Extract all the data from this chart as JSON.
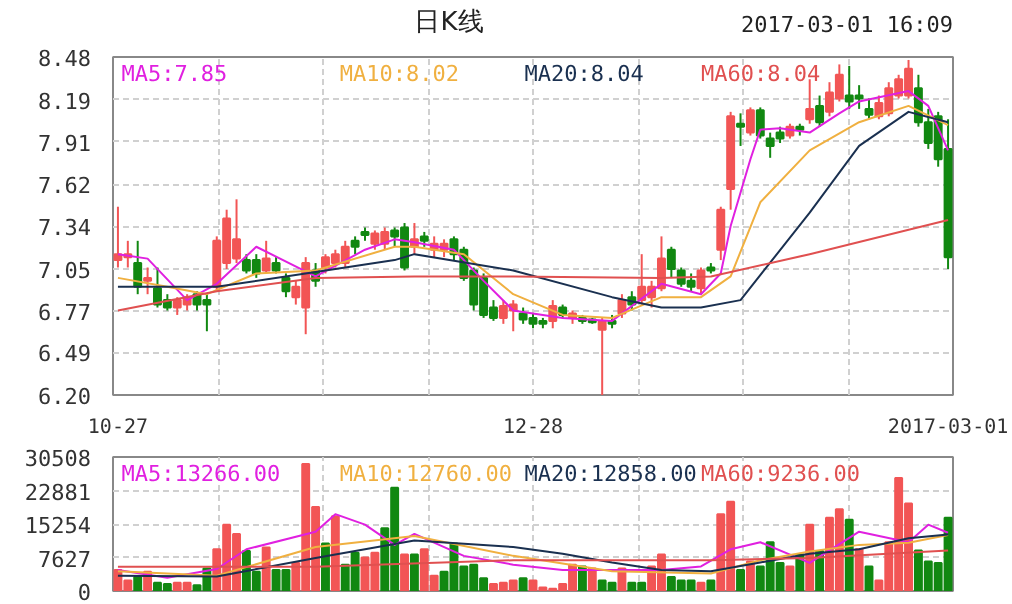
{
  "chart_data": [
    {
      "type": "candlestick",
      "title": "日K线",
      "annotations": [
        "2017-03-01 16:09"
      ],
      "categories": [
        "10-27",
        null,
        null,
        null,
        null,
        null,
        null,
        null,
        null,
        null,
        null,
        null,
        null,
        null,
        null,
        null,
        null,
        null,
        null,
        null,
        null,
        null,
        null,
        null,
        null,
        null,
        null,
        null,
        null,
        null,
        null,
        null,
        null,
        null,
        null,
        null,
        null,
        null,
        null,
        null,
        null,
        null,
        "12-28",
        null,
        null,
        null,
        null,
        null,
        null,
        null,
        null,
        null,
        null,
        null,
        null,
        null,
        null,
        null,
        null,
        null,
        null,
        null,
        null,
        null,
        null,
        null,
        null,
        null,
        null,
        null,
        null,
        null,
        null,
        null,
        null,
        null,
        null,
        null,
        null,
        null,
        null,
        null,
        null,
        null,
        "2017-03-01"
      ],
      "ohlc": [
        [
          7.11,
          7.47,
          7.06,
          7.15
        ],
        [
          7.13,
          7.24,
          7.06,
          7.15
        ],
        [
          7.09,
          7.24,
          6.88,
          6.93
        ],
        [
          6.97,
          7.06,
          6.88,
          6.99
        ],
        [
          6.92,
          7.06,
          6.79,
          6.81
        ],
        [
          6.84,
          6.88,
          6.77,
          6.79
        ],
        [
          6.79,
          6.86,
          6.74,
          6.84
        ],
        [
          6.81,
          6.88,
          6.77,
          6.86
        ],
        [
          6.88,
          6.9,
          6.77,
          6.81
        ],
        [
          6.84,
          6.88,
          6.63,
          6.81
        ],
        [
          6.93,
          7.27,
          6.9,
          7.24
        ],
        [
          7.09,
          7.45,
          7.05,
          7.39
        ],
        [
          7.12,
          7.52,
          7.09,
          7.25
        ],
        [
          7.11,
          7.15,
          7.02,
          7.04
        ],
        [
          7.11,
          7.15,
          6.99,
          7.02
        ],
        [
          7.04,
          7.24,
          7.02,
          7.12
        ],
        [
          7.09,
          7.13,
          7.02,
          7.04
        ],
        [
          6.99,
          7.02,
          6.86,
          6.9
        ],
        [
          6.86,
          6.97,
          6.81,
          6.93
        ],
        [
          6.79,
          7.13,
          6.61,
          7.09
        ],
        [
          7.04,
          7.09,
          6.93,
          6.97
        ],
        [
          7.06,
          7.15,
          7.02,
          7.13
        ],
        [
          7.09,
          7.18,
          7.06,
          7.15
        ],
        [
          7.09,
          7.24,
          7.06,
          7.2
        ],
        [
          7.24,
          7.27,
          7.15,
          7.2
        ],
        [
          7.3,
          7.33,
          7.24,
          7.28
        ],
        [
          7.22,
          7.31,
          7.18,
          7.29
        ],
        [
          7.22,
          7.33,
          7.18,
          7.3
        ],
        [
          7.31,
          7.33,
          7.2,
          7.27
        ],
        [
          7.33,
          7.36,
          7.04,
          7.06
        ],
        [
          7.2,
          7.36,
          7.15,
          7.25
        ],
        [
          7.27,
          7.3,
          7.2,
          7.24
        ],
        [
          7.18,
          7.27,
          7.13,
          7.22
        ],
        [
          7.18,
          7.25,
          7.13,
          7.22
        ],
        [
          7.25,
          7.27,
          7.11,
          7.15
        ],
        [
          7.18,
          7.2,
          6.97,
          6.99
        ],
        [
          7.04,
          7.06,
          6.77,
          6.81
        ],
        [
          6.99,
          7.02,
          6.72,
          6.74
        ],
        [
          6.79,
          6.84,
          6.7,
          6.72
        ],
        [
          6.72,
          6.84,
          6.68,
          6.8
        ],
        [
          6.77,
          6.84,
          6.63,
          6.81
        ],
        [
          6.75,
          6.79,
          6.68,
          6.71
        ],
        [
          6.72,
          6.75,
          6.65,
          6.68
        ],
        [
          6.7,
          6.72,
          6.65,
          6.68
        ],
        [
          6.7,
          6.84,
          6.65,
          6.8
        ],
        [
          6.79,
          6.81,
          6.72,
          6.74
        ],
        [
          6.72,
          6.77,
          6.68,
          6.75
        ],
        [
          6.72,
          6.74,
          6.68,
          6.7
        ],
        [
          6.71,
          6.72,
          6.68,
          6.69
        ],
        [
          6.64,
          6.72,
          6.2,
          6.7
        ],
        [
          6.7,
          6.74,
          6.65,
          6.68
        ],
        [
          6.75,
          6.88,
          6.72,
          6.84
        ],
        [
          6.86,
          6.9,
          6.77,
          6.81
        ],
        [
          6.84,
          7.15,
          6.81,
          6.93
        ],
        [
          6.86,
          6.97,
          6.79,
          6.93
        ],
        [
          6.92,
          7.27,
          6.9,
          7.12
        ],
        [
          7.18,
          7.2,
          6.99,
          7.05
        ],
        [
          7.04,
          7.06,
          6.93,
          6.95
        ],
        [
          6.97,
          7.02,
          6.9,
          6.93
        ],
        [
          6.92,
          7.06,
          6.88,
          7.04
        ],
        [
          7.06,
          7.09,
          7.02,
          7.04
        ],
        [
          7.18,
          7.47,
          7.11,
          7.45
        ],
        [
          7.59,
          8.11,
          7.45,
          8.08
        ],
        [
          8.03,
          8.1,
          7.88,
          8.01
        ],
        [
          7.97,
          8.14,
          7.95,
          8.12
        ],
        [
          8.12,
          8.14,
          7.93,
          7.95
        ],
        [
          7.93,
          7.97,
          7.8,
          7.88
        ],
        [
          7.97,
          8.01,
          7.9,
          7.93
        ],
        [
          7.95,
          8.03,
          7.93,
          8.01
        ],
        [
          8.01,
          8.03,
          7.95,
          7.99
        ],
        [
          8.06,
          8.33,
          8.03,
          8.13
        ],
        [
          8.15,
          8.22,
          8.01,
          8.04
        ],
        [
          8.11,
          8.31,
          8.08,
          8.24
        ],
        [
          8.2,
          8.43,
          8.18,
          8.36
        ],
        [
          8.22,
          8.42,
          8.13,
          8.18
        ],
        [
          8.22,
          8.29,
          8.13,
          8.2
        ],
        [
          8.13,
          8.2,
          8.06,
          8.09
        ],
        [
          8.08,
          8.22,
          8.06,
          8.17
        ],
        [
          8.1,
          8.31,
          8.08,
          8.27
        ],
        [
          8.22,
          8.36,
          8.2,
          8.33
        ],
        [
          8.22,
          8.46,
          8.2,
          8.4
        ],
        [
          8.27,
          8.36,
          8.01,
          8.04
        ],
        [
          8.04,
          8.13,
          7.86,
          7.9
        ],
        [
          8.08,
          8.11,
          7.74,
          7.79
        ],
        [
          7.86,
          8.06,
          7.05,
          7.13
        ]
      ],
      "colors": [
        "#f25555",
        "#f25555",
        "#118811",
        "#f25555",
        "#118811",
        "#118811",
        "#f25555",
        "#f25555",
        "#118811",
        "#118811",
        "#f25555",
        "#f25555",
        "#f25555",
        "#118811",
        "#118811",
        "#f25555",
        "#118811",
        "#118811",
        "#f25555",
        "#f25555",
        "#118811",
        "#f25555",
        "#f25555",
        "#f25555",
        "#118811",
        "#118811",
        "#f25555",
        "#f25555",
        "#118811",
        "#118811",
        "#f25555",
        "#118811",
        "#f25555",
        "#f25555",
        "#118811",
        "#118811",
        "#118811",
        "#118811",
        "#118811",
        "#f25555",
        "#f25555",
        "#118811",
        "#118811",
        "#118811",
        "#f25555",
        "#118811",
        "#f25555",
        "#118811",
        "#118811",
        "#f25555",
        "#118811",
        "#f25555",
        "#118811",
        "#f25555",
        "#f25555",
        "#f25555",
        "#118811",
        "#118811",
        "#118811",
        "#f25555",
        "#118811",
        "#f25555",
        "#f25555",
        "#118811",
        "#f25555",
        "#118811",
        "#118811",
        "#118811",
        "#f25555",
        "#118811",
        "#f25555",
        "#118811",
        "#f25555",
        "#f25555",
        "#118811",
        "#118811",
        "#118811",
        "#f25555",
        "#f25555",
        "#f25555",
        "#f25555",
        "#118811",
        "#118811",
        "#118811",
        "#118811"
      ],
      "series": [
        {
          "name": "MA5:7.85",
          "type": "line",
          "color": "#e020e0",
          "values": [
            7.15,
            null,
            null,
            7.12,
            null,
            null,
            null,
            6.84,
            null,
            null,
            6.95,
            null,
            null,
            null,
            7.2,
            null,
            null,
            null,
            null,
            null,
            7.0,
            null,
            null,
            null,
            null,
            7.18,
            null,
            null,
            7.25,
            null,
            7.23,
            null,
            null,
            null,
            7.18,
            null,
            null,
            6.97,
            null,
            null,
            6.77,
            null,
            null,
            null,
            null,
            6.72,
            null,
            null,
            null,
            null,
            6.7,
            null,
            null,
            null,
            null,
            6.95,
            null,
            null,
            null,
            6.88,
            null,
            7.02,
            7.34,
            null,
            7.79,
            7.99,
            null,
            8.0,
            null,
            null,
            7.97,
            null,
            null,
            8.1,
            null,
            8.18,
            null,
            null,
            null,
            null,
            8.25,
            null,
            8.15,
            null,
            7.85
          ]
        },
        {
          "name": "MA10:8.02",
          "type": "line",
          "color": "#f0b040",
          "values": [
            6.99,
            null,
            null,
            null,
            null,
            6.93,
            null,
            null,
            null,
            6.88,
            null,
            null,
            null,
            null,
            7.02,
            null,
            null,
            null,
            null,
            null,
            7.04,
            null,
            null,
            null,
            null,
            null,
            null,
            null,
            7.2,
            null,
            7.2,
            null,
            null,
            null,
            null,
            7.15,
            null,
            null,
            null,
            null,
            6.88,
            null,
            null,
            null,
            null,
            6.74,
            null,
            null,
            null,
            null,
            6.72,
            null,
            null,
            null,
            null,
            6.86,
            null,
            null,
            null,
            6.86,
            null,
            null,
            7.0,
            null,
            null,
            7.5,
            null,
            null,
            null,
            null,
            7.85,
            null,
            null,
            null,
            null,
            8.04,
            null,
            null,
            null,
            null,
            8.15,
            null,
            null,
            null,
            8.02
          ]
        },
        {
          "name": "MA20:8.04",
          "type": "line",
          "color": "#1a3050",
          "values": [
            6.93,
            null,
            null,
            null,
            null,
            null,
            null,
            null,
            null,
            null,
            6.93,
            null,
            null,
            null,
            null,
            null,
            null,
            null,
            null,
            null,
            7.03,
            null,
            null,
            null,
            null,
            null,
            null,
            null,
            7.11,
            null,
            7.15,
            null,
            null,
            null,
            null,
            null,
            null,
            null,
            null,
            null,
            7.04,
            null,
            null,
            null,
            null,
            null,
            null,
            null,
            null,
            null,
            6.86,
            null,
            null,
            null,
            null,
            6.79,
            null,
            null,
            null,
            6.79,
            null,
            null,
            null,
            6.84,
            null,
            null,
            null,
            null,
            null,
            null,
            7.43,
            null,
            null,
            null,
            null,
            7.88,
            null,
            null,
            null,
            null,
            8.11,
            null,
            null,
            null,
            8.04
          ]
        },
        {
          "name": "MA60:8.04",
          "type": "line",
          "color": "#e05050",
          "values": [
            6.77,
            null,
            null,
            null,
            null,
            null,
            null,
            null,
            null,
            null,
            6.9,
            null,
            null,
            null,
            null,
            null,
            null,
            null,
            null,
            null,
            6.99,
            null,
            null,
            null,
            null,
            null,
            null,
            null,
            null,
            null,
            7.0,
            null,
            null,
            null,
            null,
            null,
            null,
            null,
            null,
            null,
            7.0,
            null,
            null,
            null,
            null,
            null,
            null,
            null,
            null,
            null,
            null,
            null,
            null,
            null,
            null,
            6.99,
            null,
            null,
            null,
            null,
            7.0,
            null,
            null,
            null,
            null,
            null,
            null,
            null,
            null,
            null,
            7.15,
            null,
            null,
            null,
            null,
            null,
            null,
            null,
            null,
            null,
            null,
            null,
            null,
            null,
            7.38
          ]
        }
      ],
      "ylim": [
        6.2,
        8.48
      ],
      "yticks": [
        {
          "value": 6.2,
          "label": "6.20"
        },
        6.49,
        6.77,
        7.05,
        7.34,
        7.62,
        7.91,
        8.19,
        8.48
      ],
      "grid": true,
      "legend": "top"
    },
    {
      "type": "bar",
      "tick_labels": "y",
      "categories": [
        null,
        null,
        null,
        null,
        null,
        null,
        null,
        null,
        null,
        null,
        null,
        null,
        null,
        null,
        null,
        null,
        null,
        null,
        null,
        null,
        null,
        null,
        null,
        null,
        null,
        null,
        null,
        null,
        null,
        null,
        null,
        null,
        null,
        null,
        null,
        null,
        null,
        null,
        null,
        null,
        null,
        null,
        null,
        null,
        null,
        null,
        null,
        null,
        null,
        null,
        null,
        null,
        null,
        null,
        null,
        null,
        null,
        null,
        null,
        null,
        null,
        null,
        null,
        null,
        null,
        null,
        null,
        null,
        null,
        null,
        null,
        null,
        null,
        null,
        null,
        null,
        null,
        null,
        null,
        null,
        null,
        null,
        null,
        null,
        null
      ],
      "values": [
        4800,
        2400,
        3200,
        4400,
        1900,
        1600,
        1900,
        1900,
        1300,
        5100,
        9500,
        15100,
        13000,
        9100,
        4400,
        9900,
        4800,
        4800,
        6400,
        28900,
        19100,
        10800,
        17000,
        6000,
        8700,
        7600,
        8700,
        14300,
        23500,
        8300,
        8300,
        9500,
        3500,
        4400,
        10800,
        5600,
        6000,
        2900,
        1600,
        1900,
        2400,
        2900,
        2400,
        800,
        500,
        1600,
        6000,
        5600,
        5100,
        2400,
        1900,
        5100,
        1900,
        1900,
        5600,
        8300,
        3200,
        2400,
        2400,
        1900,
        2400,
        17500,
        20300,
        4800,
        6700,
        5600,
        11100,
        6400,
        5600,
        8300,
        15100,
        9100,
        16700,
        18600,
        16200,
        9500,
        5600,
        2400,
        11100,
        25700,
        19900,
        9200,
        6700,
        6400,
        16700
      ],
      "colors": [
        "#f25555",
        "#f25555",
        "#118811",
        "#f25555",
        "#118811",
        "#118811",
        "#f25555",
        "#f25555",
        "#118811",
        "#118811",
        "#f25555",
        "#f25555",
        "#f25555",
        "#118811",
        "#118811",
        "#f25555",
        "#118811",
        "#118811",
        "#f25555",
        "#f25555",
        "#f25555",
        "#118811",
        "#f25555",
        "#118811",
        "#118811",
        "#f25555",
        "#f25555",
        "#118811",
        "#118811",
        "#f25555",
        "#118811",
        "#f25555",
        "#f25555",
        "#118811",
        "#118811",
        "#118811",
        "#118811",
        "#118811",
        "#f25555",
        "#f25555",
        "#f25555",
        "#118811",
        "#f25555",
        "#f25555",
        "#f25555",
        "#f25555",
        "#f25555",
        "#118811",
        "#f25555",
        "#118811",
        "#118811",
        "#f25555",
        "#118811",
        "#118811",
        "#f25555",
        "#f25555",
        "#118811",
        "#118811",
        "#118811",
        "#f25555",
        "#118811",
        "#f25555",
        "#f25555",
        "#118811",
        "#f25555",
        "#118811",
        "#118811",
        "#118811",
        "#f25555",
        "#118811",
        "#f25555",
        "#118811",
        "#f25555",
        "#f25555",
        "#118811",
        "#f25555",
        "#118811",
        "#f25555",
        "#f25555",
        "#f25555",
        "#f25555",
        "#118811",
        "#118811",
        "#118811",
        "#118811"
      ],
      "series": [
        {
          "name": "MA5:13266.00",
          "type": "line",
          "color": "#e020e0",
          "values": [
            4800,
            null,
            null,
            null,
            null,
            3000,
            null,
            null,
            null,
            null,
            5000,
            null,
            null,
            9500,
            null,
            null,
            null,
            null,
            null,
            null,
            13500,
            null,
            17500,
            null,
            null,
            15100,
            null,
            null,
            10500,
            null,
            13000,
            null,
            null,
            null,
            null,
            8000,
            null,
            null,
            null,
            null,
            6000,
            null,
            null,
            null,
            null,
            4800,
            null,
            null,
            null,
            null,
            4800,
            null,
            null,
            null,
            null,
            4800,
            null,
            null,
            null,
            5600,
            null,
            null,
            9500,
            null,
            null,
            11100,
            null,
            null,
            null,
            null,
            6400,
            null,
            null,
            null,
            null,
            13500,
            null,
            null,
            null,
            null,
            11100,
            null,
            15100,
            null,
            13266
          ]
        },
        {
          "name": "MA10:12760.00",
          "type": "line",
          "color": "#f0b040",
          "values": [
            4500,
            null,
            null,
            null,
            null,
            null,
            null,
            null,
            null,
            null,
            3500,
            null,
            null,
            null,
            null,
            null,
            null,
            null,
            null,
            null,
            10000,
            null,
            null,
            null,
            null,
            null,
            null,
            null,
            null,
            null,
            12500,
            null,
            null,
            null,
            null,
            null,
            null,
            null,
            null,
            null,
            8000,
            null,
            null,
            null,
            null,
            null,
            null,
            null,
            null,
            null,
            4500,
            null,
            null,
            null,
            null,
            null,
            null,
            null,
            null,
            null,
            4000,
            null,
            null,
            null,
            null,
            7000,
            null,
            null,
            null,
            null,
            9000,
            null,
            null,
            null,
            null,
            10500,
            null,
            null,
            null,
            null,
            11000,
            null,
            null,
            null,
            12760
          ]
        },
        {
          "name": "MA20:12858.00",
          "type": "line",
          "color": "#1a3050",
          "values": [
            3500,
            null,
            null,
            null,
            null,
            null,
            null,
            null,
            null,
            null,
            3300,
            null,
            null,
            null,
            null,
            null,
            null,
            null,
            null,
            null,
            7500,
            null,
            null,
            null,
            null,
            null,
            null,
            null,
            null,
            null,
            11500,
            null,
            null,
            null,
            null,
            null,
            null,
            null,
            null,
            null,
            10000,
            null,
            null,
            null,
            null,
            8500,
            null,
            null,
            null,
            null,
            6500,
            null,
            null,
            null,
            null,
            4800,
            null,
            null,
            null,
            null,
            4500,
            null,
            null,
            null,
            null,
            6500,
            null,
            null,
            null,
            null,
            8500,
            null,
            null,
            null,
            null,
            9500,
            null,
            null,
            null,
            null,
            12000,
            null,
            null,
            null,
            12858
          ]
        },
        {
          "name": "MA60:9236.00",
          "type": "line",
          "color": "#e05050",
          "values": [
            5500,
            null,
            null,
            null,
            null,
            null,
            null,
            null,
            null,
            null,
            null,
            null,
            null,
            null,
            null,
            null,
            null,
            null,
            null,
            null,
            5500,
            null,
            null,
            null,
            null,
            null,
            null,
            null,
            null,
            null,
            null,
            null,
            null,
            null,
            null,
            null,
            null,
            null,
            null,
            null,
            7000,
            null,
            null,
            null,
            null,
            null,
            null,
            null,
            null,
            null,
            null,
            null,
            null,
            null,
            null,
            null,
            null,
            null,
            null,
            null,
            7000,
            null,
            null,
            null,
            null,
            null,
            null,
            null,
            null,
            null,
            7500,
            null,
            null,
            null,
            null,
            null,
            null,
            null,
            null,
            null,
            null,
            null,
            null,
            null,
            9236
          ]
        }
      ],
      "ylim": [
        0,
        30508
      ],
      "yticks": [
        0,
        7627,
        15254,
        22881,
        30508
      ],
      "grid": true,
      "legend": "top"
    }
  ]
}
